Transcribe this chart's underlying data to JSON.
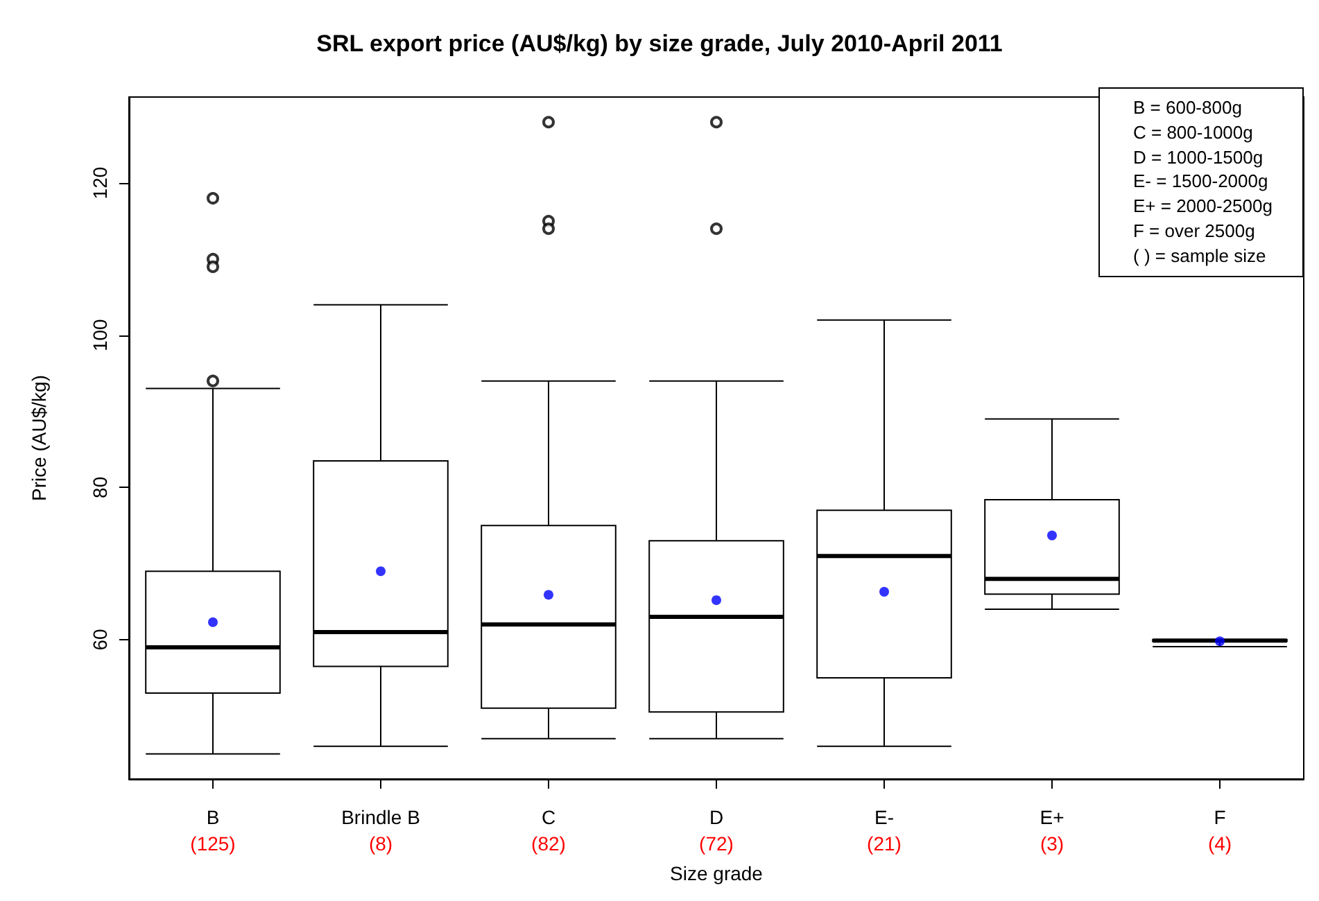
{
  "chart_data": {
    "type": "box",
    "title": "SRL export price (AU$/kg) by size grade, July 2010-April 2011",
    "xlabel": "Size grade",
    "ylabel": "Price (AU$/kg)",
    "categories": [
      "B",
      "Brindle B",
      "C",
      "D",
      "E-",
      "E+",
      "F"
    ],
    "boxes": [
      {
        "low": 45,
        "q1": 53,
        "median": 59,
        "q3": 69,
        "high": 93,
        "mean": 62.3,
        "outliers": [
          118,
          110,
          109,
          94
        ]
      },
      {
        "low": 46,
        "q1": 56.5,
        "median": 61,
        "q3": 83.5,
        "high": 104,
        "mean": 69
      },
      {
        "low": 47,
        "q1": 51,
        "median": 62,
        "q3": 75,
        "high": 94,
        "mean": 65.9,
        "outliers": [
          128,
          115,
          114
        ]
      },
      {
        "low": 47,
        "q1": 50.5,
        "median": 63,
        "q3": 73,
        "high": 94,
        "mean": 65.2,
        "outliers": [
          128,
          114
        ]
      },
      {
        "low": 46,
        "q1": 55,
        "median": 71,
        "q3": 77,
        "high": 102,
        "mean": 66.3
      },
      {
        "low": 64,
        "q1": 66,
        "median": 68,
        "q3": 78.4,
        "high": 89,
        "mean": 73.7
      },
      {
        "low": 59.1,
        "q1": 59.8,
        "median": 59.9,
        "q3": 60,
        "high": 60,
        "mean": 59.8
      }
    ],
    "annotations": [
      "(125)",
      "(8)",
      "(82)",
      "(72)",
      "(21)",
      "(3)",
      "(4)",
      "B = 600-800g",
      "C = 800-1000g",
      "D = 1000-1500g",
      "E- = 1500-2000g",
      "E+ = 2000-2500g",
      "F = over 2500g",
      "( ) = sample size"
    ],
    "ylim": [
      41.7,
      131.3
    ],
    "yticks": [
      60,
      80,
      100,
      120
    ],
    "grid": false
  }
}
